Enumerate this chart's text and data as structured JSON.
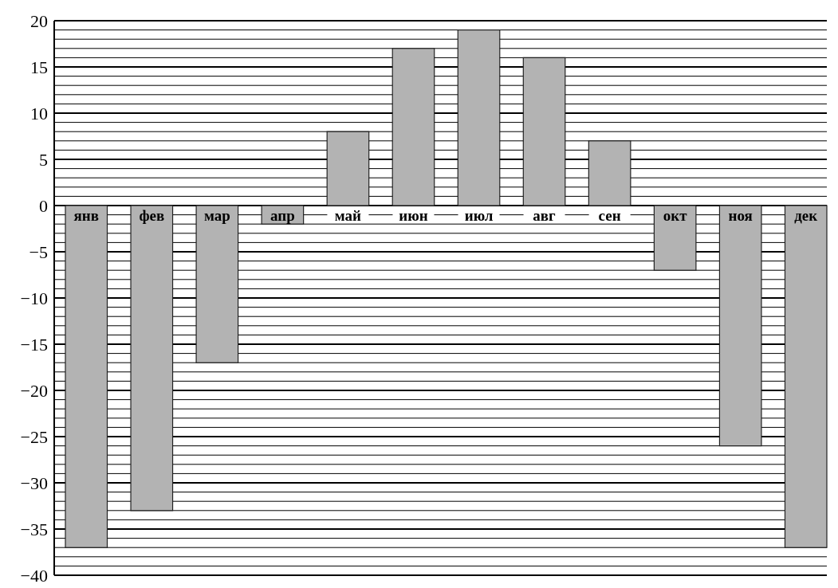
{
  "chart_data": {
    "type": "bar",
    "categories": [
      "янв",
      "фев",
      "мар",
      "апр",
      "май",
      "июн",
      "июл",
      "авг",
      "сен",
      "окт",
      "ноя",
      "дек"
    ],
    "values": [
      -37,
      -33,
      -17,
      -2,
      8,
      17,
      19,
      16,
      7,
      -7,
      -26,
      -37
    ],
    "color": "#b3b3b3",
    "ylim": [
      -40,
      20
    ],
    "yticks": [
      -40,
      {
        "value": -39,
        "label": null
      },
      {
        "value": -38,
        "label": null
      },
      {
        "value": -37,
        "label": null
      },
      {
        "value": -36,
        "label": null
      },
      -35,
      {
        "value": -34,
        "label": null
      },
      {
        "value": -33,
        "label": null
      },
      {
        "value": -32,
        "label": null
      },
      {
        "value": -31,
        "label": null
      },
      -30,
      {
        "value": -29,
        "label": null
      },
      {
        "value": -28,
        "label": null
      },
      {
        "value": -27,
        "label": null
      },
      {
        "value": -26,
        "label": null
      },
      -25,
      {
        "value": -24,
        "label": null
      },
      {
        "value": -23,
        "label": null
      },
      {
        "value": -22,
        "label": null
      },
      {
        "value": -21,
        "label": null
      },
      -20,
      {
        "value": -19,
        "label": null
      },
      {
        "value": -18,
        "label": null
      },
      {
        "value": -17,
        "label": null
      },
      {
        "value": -16,
        "label": null
      },
      -15,
      {
        "value": -14,
        "label": null
      },
      {
        "value": -13,
        "label": null
      },
      {
        "value": -12,
        "label": null
      },
      {
        "value": -11,
        "label": null
      },
      -10,
      {
        "value": -9,
        "label": null
      },
      {
        "value": -8,
        "label": null
      },
      {
        "value": -7,
        "label": null
      },
      {
        "value": -6,
        "label": null
      },
      -5,
      {
        "value": -4,
        "label": null
      },
      {
        "value": -3,
        "label": null
      },
      {
        "value": -2,
        "label": null
      },
      {
        "value": -1,
        "label": null
      },
      0,
      {
        "value": 1,
        "label": null
      },
      {
        "value": 2,
        "label": null
      },
      {
        "value": 3,
        "label": null
      },
      {
        "value": 4,
        "label": null
      },
      5,
      {
        "value": 6,
        "label": null
      },
      {
        "value": 7,
        "label": null
      },
      {
        "value": 8,
        "label": null
      },
      {
        "value": 9,
        "label": null
      },
      10,
      {
        "value": 11,
        "label": null
      },
      {
        "value": 12,
        "label": null
      },
      {
        "value": 13,
        "label": null
      },
      {
        "value": 14,
        "label": null
      },
      15,
      {
        "value": 16,
        "label": null
      },
      {
        "value": 17,
        "label": null
      },
      {
        "value": 18,
        "label": null
      },
      {
        "value": 19,
        "label": null
      },
      20
    ],
    "grid": "y"
  }
}
